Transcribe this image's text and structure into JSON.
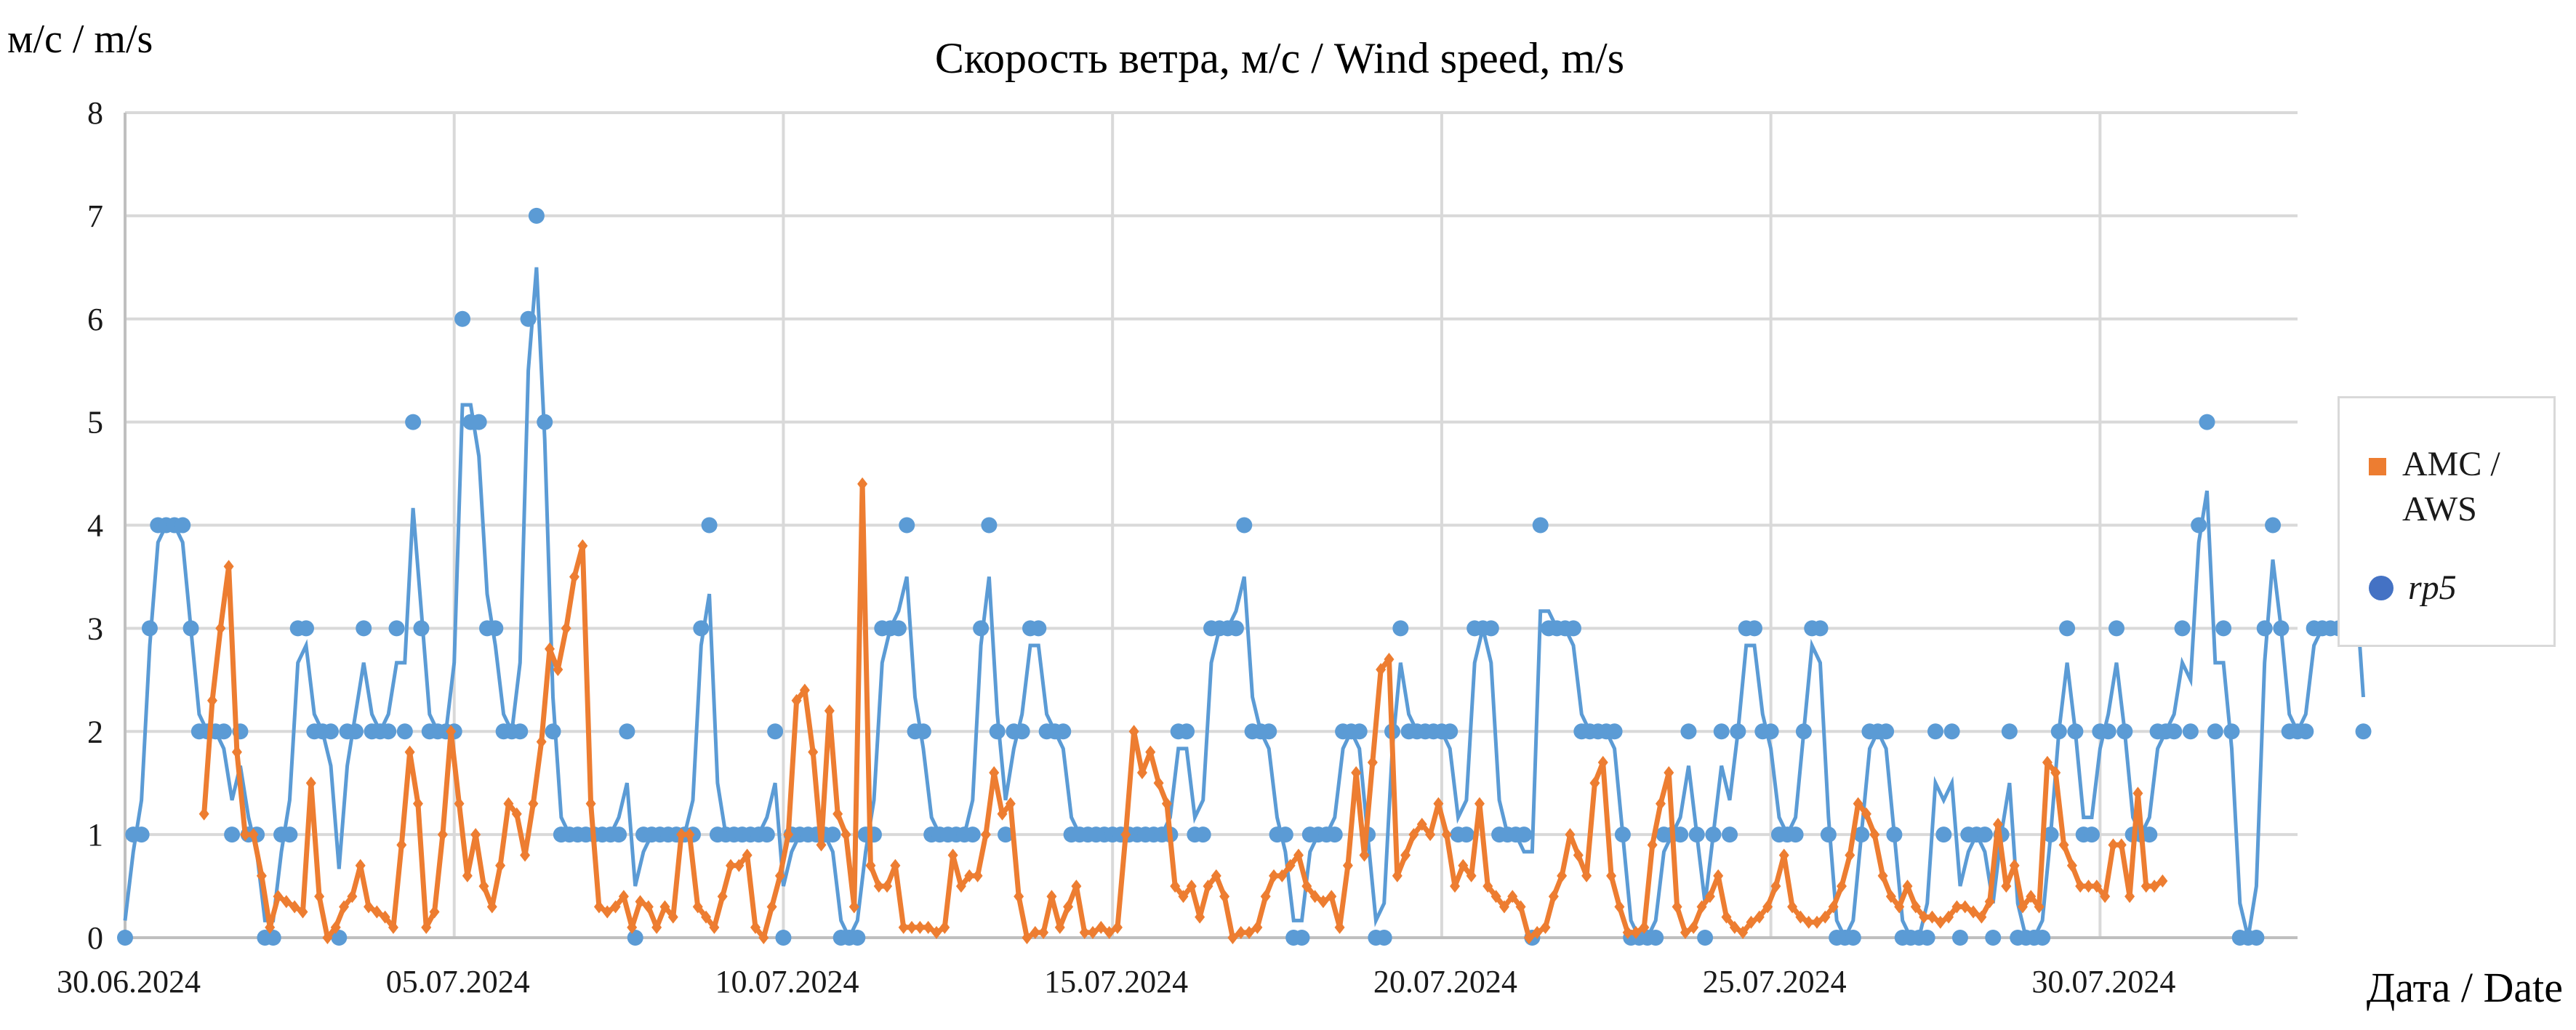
{
  "chart_data": {
    "type": "line",
    "title": "Скорость ветра, м/с / Wind speed, m/s",
    "ylabel": "м/с / m/s",
    "xlabel": "Дата / Date",
    "ylim": [
      0,
      8
    ],
    "yticks": [
      "0",
      "1",
      "2",
      "3",
      "4",
      "5",
      "6",
      "7",
      "8"
    ],
    "xlim": [
      "30.06.2024",
      "02.08.2024"
    ],
    "xticks": [
      "30.06.2024",
      "05.07.2024",
      "10.07.2024",
      "15.07.2024",
      "20.07.2024",
      "25.07.2024",
      "30.07.2024"
    ],
    "grid": true,
    "legend_position": "right",
    "series": [
      {
        "name": "АМС / AWS",
        "color": "#ED7D31",
        "marker": "diamond",
        "y_start": 1.2,
        "y_step_days": 0.125,
        "values": [
          1.2,
          2.3,
          3.0,
          3.6,
          1.8,
          1.0,
          1.0,
          0.6,
          0.1,
          0.4,
          0.35,
          0.3,
          0.25,
          1.5,
          0.4,
          0.0,
          0.1,
          0.3,
          0.4,
          0.7,
          0.3,
          0.25,
          0.2,
          0.1,
          0.9,
          1.8,
          1.3,
          0.1,
          0.25,
          1.0,
          2.0,
          1.3,
          0.6,
          1.0,
          0.5,
          0.3,
          0.7,
          1.3,
          1.2,
          0.8,
          1.3,
          1.9,
          2.8,
          2.6,
          3.0,
          3.5,
          3.8,
          1.3,
          0.3,
          0.25,
          0.3,
          0.4,
          0.1,
          0.35,
          0.3,
          0.1,
          0.3,
          0.2,
          1.0,
          1.0,
          0.3,
          0.2,
          0.1,
          0.4,
          0.7,
          0.7,
          0.8,
          0.1,
          0.0,
          0.3,
          0.6,
          1.0,
          2.3,
          2.4,
          1.8,
          0.9,
          2.2,
          1.2,
          1.0,
          0.3,
          4.4,
          0.7,
          0.5,
          0.5,
          0.7,
          0.1,
          0.1,
          0.1,
          0.1,
          0.05,
          0.1,
          0.8,
          0.5,
          0.6,
          0.6,
          1.0,
          1.6,
          1.2,
          1.3,
          0.4,
          0.0,
          0.05,
          0.05,
          0.4,
          0.1,
          0.3,
          0.5,
          0.05,
          0.05,
          0.1,
          0.05,
          0.1,
          1.0,
          2.0,
          1.6,
          1.8,
          1.5,
          1.3,
          0.5,
          0.4,
          0.5,
          0.2,
          0.5,
          0.6,
          0.4,
          0.0,
          0.05,
          0.05,
          0.1,
          0.4,
          0.6,
          0.6,
          0.7,
          0.8,
          0.5,
          0.4,
          0.35,
          0.4,
          0.1,
          0.7,
          1.6,
          0.8,
          1.7,
          2.6,
          2.7,
          0.6,
          0.8,
          1.0,
          1.1,
          1.0,
          1.3,
          1.0,
          0.5,
          0.7,
          0.6,
          1.3,
          0.5,
          0.4,
          0.3,
          0.4,
          0.3,
          0.0,
          0.05,
          0.1,
          0.4,
          0.6,
          1.0,
          0.8,
          0.6,
          1.5,
          1.7,
          0.6,
          0.3,
          0.05,
          0.05,
          0.1,
          0.9,
          1.3,
          1.6,
          0.3,
          0.05,
          0.1,
          0.3,
          0.4,
          0.6,
          0.2,
          0.1,
          0.05,
          0.15,
          0.2,
          0.3,
          0.5,
          0.8,
          0.3,
          0.2,
          0.15,
          0.15,
          0.2,
          0.3,
          0.5,
          0.8,
          1.3,
          1.2,
          1.0,
          0.6,
          0.4,
          0.3,
          0.5,
          0.3,
          0.2,
          0.2,
          0.15,
          0.2,
          0.3,
          0.3,
          0.25,
          0.2,
          0.35,
          1.1,
          0.5,
          0.7,
          0.3,
          0.4,
          0.3,
          1.7,
          1.6,
          0.9,
          0.7,
          0.5,
          0.5,
          0.5,
          0.4,
          0.9,
          0.9,
          0.4,
          1.4,
          0.5,
          0.5,
          0.55
        ]
      },
      {
        "name": "rp5",
        "color": "#5B9BD5",
        "marker": "circle",
        "y_start": 0.0,
        "y_step_days": 0.125,
        "values": [
          0,
          1,
          1,
          3,
          4,
          4,
          4,
          4,
          3,
          2,
          2,
          2,
          2,
          1,
          2,
          1,
          1,
          0,
          0,
          1,
          1,
          3,
          3,
          2,
          2,
          2,
          0,
          2,
          2,
          3,
          2,
          2,
          2,
          3,
          2,
          5,
          3,
          2,
          2,
          2,
          2,
          6,
          5,
          5,
          3,
          3,
          2,
          2,
          2,
          6,
          7,
          5,
          2,
          1,
          1,
          1,
          1,
          1,
          1,
          1,
          1,
          2,
          0,
          1,
          1,
          1,
          1,
          1,
          1,
          1,
          3,
          4,
          1,
          1,
          1,
          1,
          1,
          1,
          1,
          2,
          0,
          1,
          1,
          1,
          1,
          1,
          1,
          0,
          0,
          0,
          1,
          1,
          3,
          3,
          3,
          4,
          2,
          2,
          1,
          1,
          1,
          1,
          1,
          1,
          3,
          4,
          2,
          1,
          2,
          2,
          3,
          3,
          2,
          2,
          2,
          1,
          1,
          1,
          1,
          1,
          1,
          1,
          1,
          1,
          1,
          1,
          1,
          1,
          2,
          2,
          1,
          1,
          3,
          3,
          3,
          3,
          4,
          2,
          2,
          2,
          1,
          1,
          0,
          0,
          1,
          1,
          1,
          1,
          2,
          2,
          2,
          1,
          0,
          0,
          2,
          3,
          2,
          2,
          2,
          2,
          2,
          2,
          1,
          1,
          3,
          3,
          3,
          1,
          1,
          1,
          1,
          0,
          4,
          3,
          3,
          3,
          3,
          2,
          2,
          2,
          2,
          2,
          1,
          0,
          0,
          0,
          0,
          1,
          1,
          1,
          2,
          1,
          0,
          1,
          2,
          1,
          2,
          3,
          3,
          2,
          2,
          1,
          1,
          1,
          2,
          3,
          3,
          1,
          0,
          0,
          0,
          1,
          2,
          2,
          2,
          1,
          0,
          0,
          0,
          0,
          2,
          1,
          2,
          0,
          1,
          1,
          1,
          0,
          1,
          2,
          0,
          0,
          0,
          0,
          1,
          2,
          3,
          2,
          1,
          1,
          2,
          2,
          3,
          2,
          1,
          1,
          1,
          2,
          2,
          2,
          3,
          2,
          4,
          5,
          2,
          3,
          2,
          0,
          0,
          0,
          3,
          4,
          3,
          2,
          2,
          2,
          3,
          3,
          3,
          3,
          3,
          4,
          2
        ]
      }
    ]
  },
  "legend": {
    "items": [
      {
        "label": "АМС / AWS"
      },
      {
        "label": "rp5"
      }
    ]
  }
}
